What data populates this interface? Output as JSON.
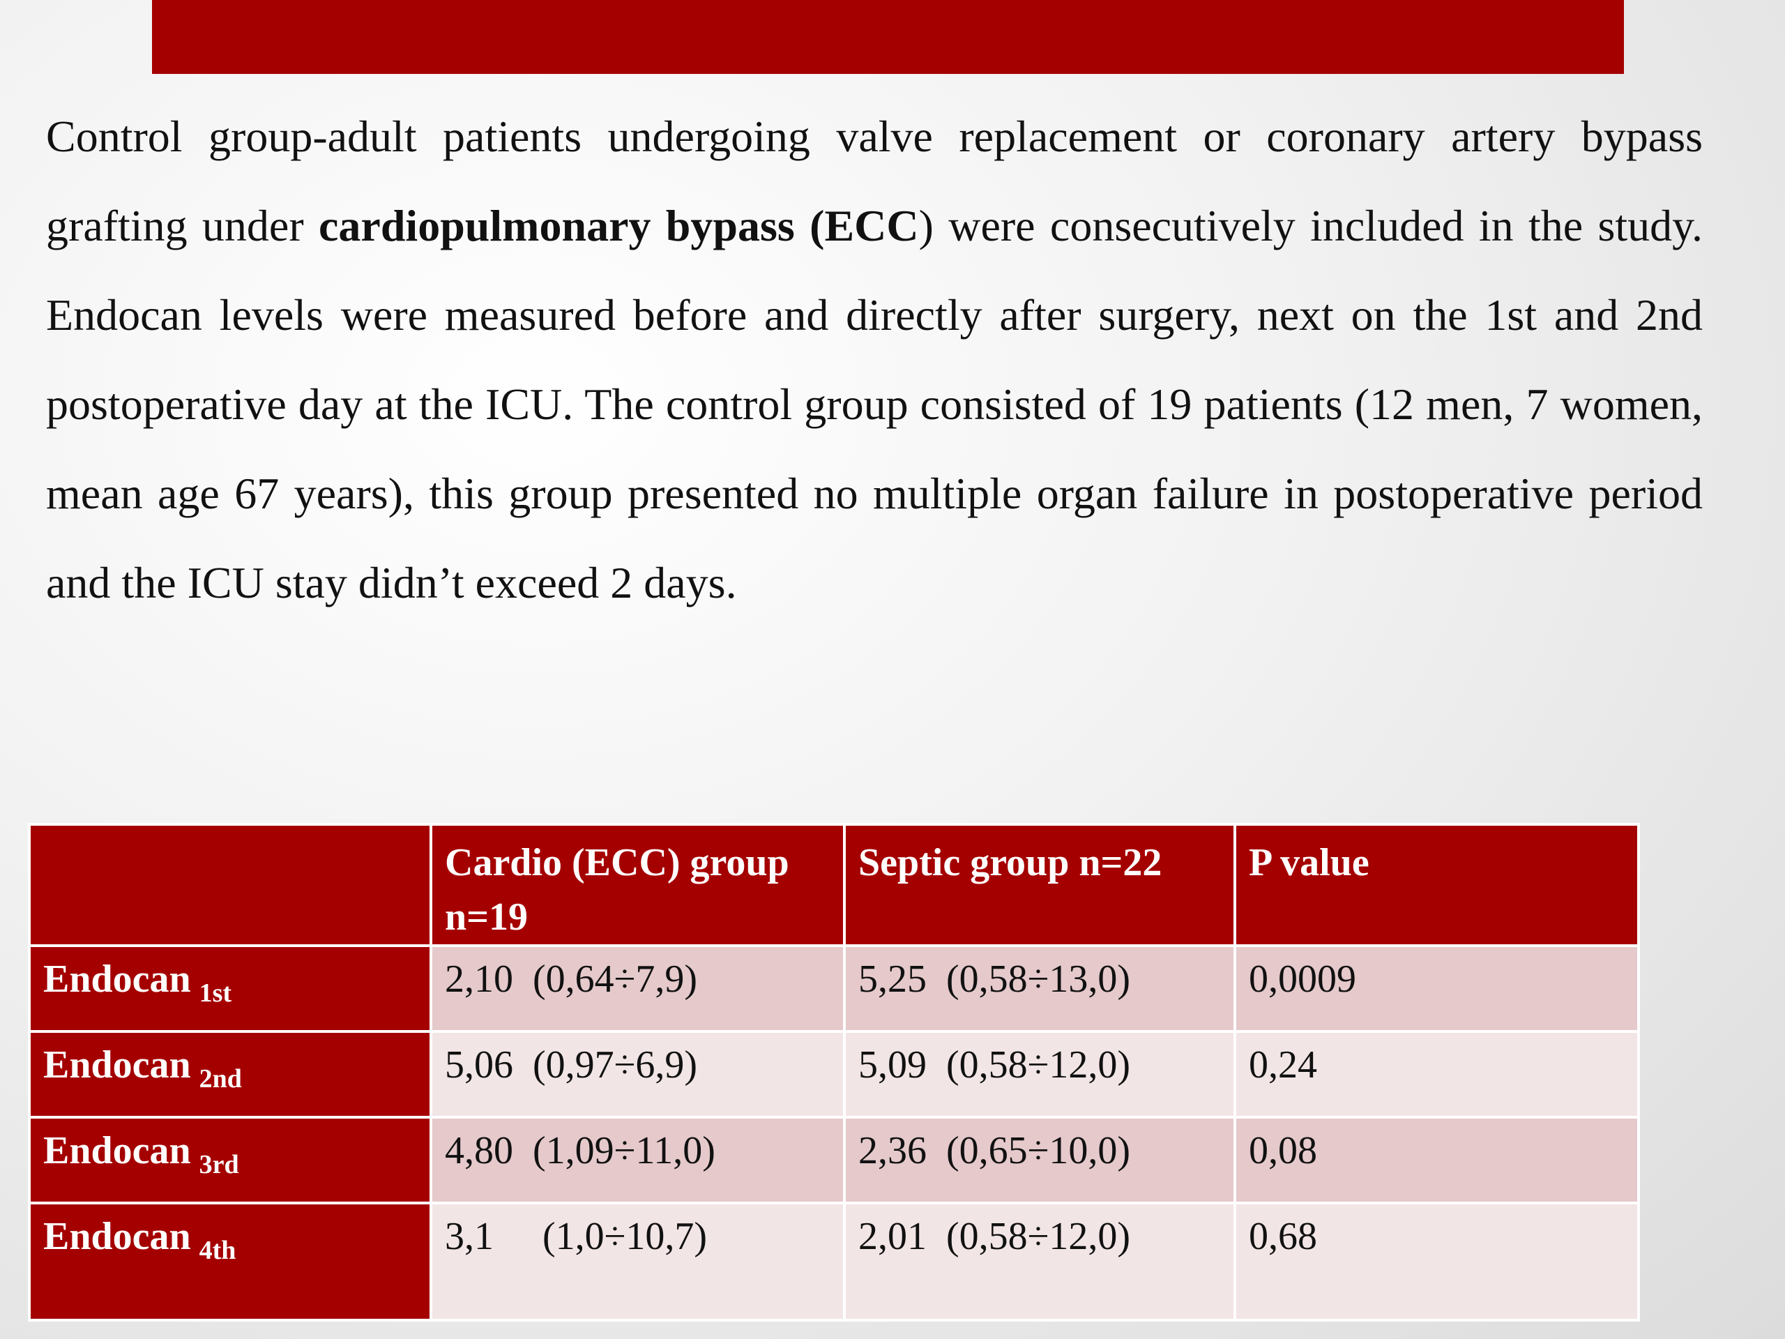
{
  "colors": {
    "accent": "#a50000",
    "row_odd": "#e5c9cb",
    "row_even": "#f2e5e6"
  },
  "paragraph": {
    "part1": "Control group-adult patients undergoing valve replacement or coronary artery bypass grafting under ",
    "bold1": "cardiopulmonary bypass (ECC",
    "part2": ") were consecutively included in the study. Endocan levels were measured before and directly after surgery, next on the 1st and 2nd postoperative day at the ICU. The control group consisted of 19 patients (12 men, 7 women, mean age 67 years), this group presented no multiple organ failure in postoperative period and the ICU stay didn’t exceed 2 days."
  },
  "table": {
    "headers": [
      "",
      "Cardio (ECC) group n=19",
      "Septic group n=22",
      "P value"
    ],
    "rows": [
      {
        "label": "Endocan",
        "sub": "1st",
        "cardio_value": "2,10",
        "cardio_range": "(0,64÷7,9)",
        "septic_value": "5,25",
        "septic_range": "(0,58÷13,0)",
        "p": "0,0009"
      },
      {
        "label": "Endocan",
        "sub": "2nd",
        "cardio_value": "5,06",
        "cardio_range": "(0,97÷6,9)",
        "septic_value": "5,09",
        "septic_range": "(0,58÷12,0)",
        "p": "0,24"
      },
      {
        "label": "Endocan",
        "sub": "3rd",
        "cardio_value": "4,80",
        "cardio_range": "(1,09÷11,0)",
        "septic_value": "2,36",
        "septic_range": "(0,65÷10,0)",
        "p": "0,08"
      },
      {
        "label": "Endocan",
        "sub": "4th",
        "cardio_value": "3,1",
        "cardio_range": "(1,0÷10,7)",
        "septic_value": "2,01",
        "septic_range": "(0,58÷12,0)",
        "p": "0,68"
      }
    ]
  }
}
